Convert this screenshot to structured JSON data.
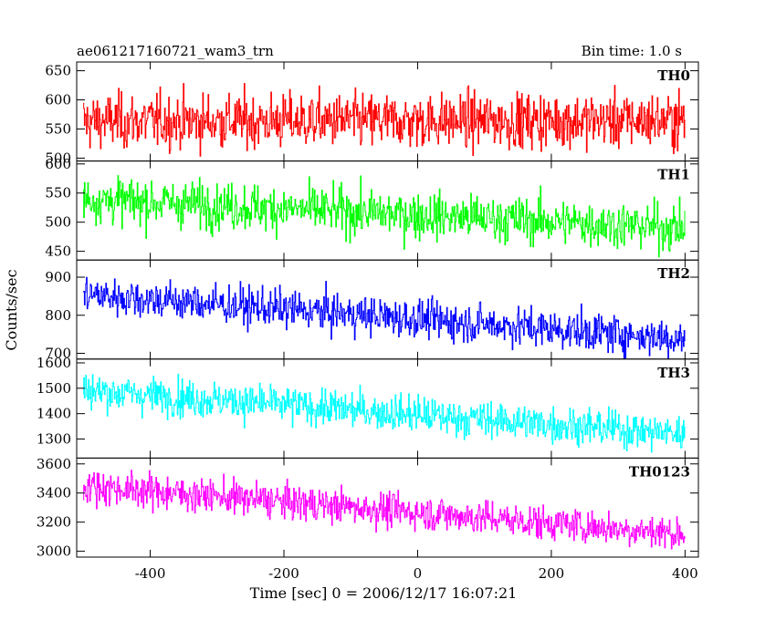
{
  "header": {
    "title": "ae061217160721_wam3_trn",
    "bin_time": "Bin time: 1.0 s"
  },
  "chart_data": {
    "type": "line",
    "xlabel": "Time [sec] 0 = 2006/12/17 16:07:21",
    "ylabel": "Counts/sec",
    "xlim": [
      -510,
      420
    ],
    "xticks": [
      -400,
      -200,
      0,
      200,
      400
    ],
    "x_start": -500,
    "x_end": 400,
    "x_step": 1,
    "panels": [
      {
        "name": "TH0",
        "color": "#ff0000",
        "ylim": [
          495,
          665
        ],
        "yticks": [
          500,
          550,
          600,
          650
        ],
        "trend_start": 563,
        "trend_end": 565,
        "noise": 26
      },
      {
        "name": "TH1",
        "color": "#00ff00",
        "ylim": [
          435,
          605
        ],
        "yticks": [
          450,
          500,
          550,
          600
        ],
        "trend_start": 540,
        "trend_end": 490,
        "noise": 22
      },
      {
        "name": "TH2",
        "color": "#0000ff",
        "ylim": [
          685,
          945
        ],
        "yticks": [
          700,
          800,
          900
        ],
        "trend_start": 855,
        "trend_end": 738,
        "noise": 28
      },
      {
        "name": "TH3",
        "color": "#00ffff",
        "ylim": [
          1225,
          1615
        ],
        "yticks": [
          1300,
          1400,
          1500,
          1600
        ],
        "trend_start": 1492,
        "trend_end": 1320,
        "noise": 40
      },
      {
        "name": "TH0123",
        "color": "#ff00ff",
        "ylim": [
          2960,
          3640
        ],
        "yticks": [
          3000,
          3200,
          3400,
          3600
        ],
        "trend_start": 3450,
        "trend_end": 3120,
        "noise": 65
      }
    ]
  }
}
